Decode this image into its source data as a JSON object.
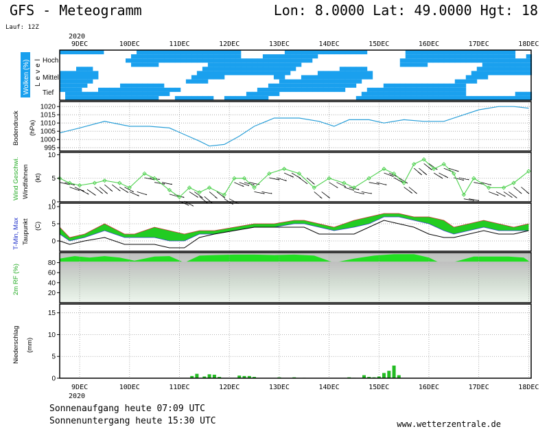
{
  "header": {
    "title": "GFS - Meteogramm",
    "location": "Lon: 8.0000  Lat: 49.0000  Hgt: 18",
    "run": "Lauf: 12Z"
  },
  "footer": {
    "sunrise": "Sonnenaufgang heute 07:09 UTC",
    "sunset": "Sonnenuntergang heute 15:30 UTC",
    "source": "www.wetterzentrale.de"
  },
  "chart_data": {
    "type": "line",
    "year_label": "2020",
    "day_labels": [
      "9DEC",
      "10DEC",
      "11DEC",
      "12DEC",
      "13DEC",
      "14DEC",
      "15DEC",
      "16DEC",
      "17DEC",
      "18DEC"
    ],
    "x_start_day": 9.1,
    "x_end_day": 18.55,
    "colors": {
      "cloud": "#1aa0ee",
      "pressure": "#2a9fd8",
      "wind": "#4bd04b",
      "tmax": "#22cc22",
      "tmin_fill": "#99dd33",
      "dewpoint": "#000000",
      "humidity": "#22dd22",
      "precip": "#22bb22"
    },
    "panels": {
      "clouds": {
        "ylabel": "Wolken (%)",
        "level_label": "Level",
        "levels": [
          "Hoch",
          "Mittel",
          "Tief"
        ]
      },
      "pressure": {
        "ylabel": "Bodendruck",
        "unit": "(hPa)",
        "ticks": [
          995,
          1000,
          1005,
          1010,
          1015,
          1020
        ],
        "ylim": [
          993,
          1023
        ],
        "x": [
          9.1,
          9.5,
          10.0,
          10.5,
          10.9,
          11.3,
          11.6,
          11.9,
          12.1,
          12.4,
          12.7,
          13.0,
          13.4,
          13.9,
          14.3,
          14.6,
          14.9,
          15.3,
          15.6,
          16.0,
          16.4,
          16.8,
          17.1,
          17.5,
          17.9,
          18.2,
          18.5
        ],
        "values": [
          1004,
          1007,
          1011,
          1008,
          1008,
          1007,
          1003,
          999,
          996,
          997,
          1002,
          1008,
          1013,
          1013,
          1011,
          1008,
          1012,
          1012,
          1010,
          1012,
          1011,
          1011,
          1014,
          1018,
          1020,
          1020,
          1019
        ]
      },
      "wind": {
        "ylabel": "Wind Geschwi.",
        "ylabel2": "Windfahnen",
        "unit": "(kt)",
        "ticks": [
          0,
          5,
          10
        ],
        "ylim": [
          0,
          10.5
        ],
        "x": [
          9.1,
          9.3,
          9.5,
          9.8,
          10.0,
          10.3,
          10.5,
          10.8,
          11.0,
          11.3,
          11.5,
          11.7,
          11.9,
          12.1,
          12.4,
          12.6,
          12.8,
          13.0,
          13.3,
          13.6,
          13.9,
          14.2,
          14.5,
          14.8,
          15.0,
          15.3,
          15.6,
          15.8,
          16.0,
          16.2,
          16.4,
          16.6,
          16.8,
          17.0,
          17.2,
          17.4,
          17.7,
          18.0,
          18.2,
          18.5
        ],
        "values": [
          5,
          4,
          3.5,
          4,
          4.5,
          4,
          3,
          6,
          5,
          2.5,
          1,
          3,
          2,
          3,
          1.5,
          5,
          5,
          3,
          6,
          7,
          6,
          3,
          5,
          4,
          3,
          5,
          7,
          6,
          4,
          8,
          9,
          7,
          8,
          6,
          1.5,
          5,
          3,
          3,
          4,
          6.5
        ]
      },
      "temperature": {
        "ylabel": "T-Min, Max",
        "ylabel2": "Taupunkt",
        "unit": "(C)",
        "ticks": [
          0,
          5,
          10
        ],
        "ylim": [
          -3,
          11
        ],
        "x": [
          9.1,
          9.3,
          9.6,
          10.0,
          10.4,
          10.6,
          11.0,
          11.3,
          11.6,
          11.9,
          12.2,
          12.6,
          13.0,
          13.4,
          13.8,
          14.0,
          14.3,
          14.6,
          15.0,
          15.3,
          15.6,
          15.9,
          16.2,
          16.5,
          16.8,
          17.0,
          17.3,
          17.6,
          17.9,
          18.2,
          18.5
        ],
        "tmax": [
          4,
          1,
          2,
          5,
          2,
          2,
          4,
          3,
          2,
          3,
          3,
          4,
          5,
          5,
          6,
          6,
          5,
          4,
          6,
          7,
          8,
          8,
          7,
          7,
          6,
          4,
          5,
          6,
          5,
          4,
          5
        ],
        "tmin": [
          2,
          0,
          1,
          3,
          1,
          1,
          1,
          0,
          0,
          2,
          2,
          3,
          4,
          4,
          5,
          5,
          4,
          3,
          4,
          5,
          7,
          7,
          6,
          5,
          3,
          2,
          3,
          4,
          3,
          3,
          3
        ],
        "dewpoint": [
          0,
          -1,
          0,
          1,
          -1,
          -1,
          -1,
          -2,
          -2,
          1,
          2,
          3,
          4,
          4,
          4,
          4,
          2,
          2,
          2,
          4,
          6,
          5,
          4,
          2,
          1,
          1,
          2,
          3,
          2,
          2,
          3
        ]
      },
      "humidity": {
        "ylabel": "2m RF (%)",
        "ticks": [
          20,
          40,
          60,
          80
        ],
        "ylim": [
          0,
          100
        ],
        "x": [
          9.1,
          9.4,
          9.7,
          10.0,
          10.3,
          10.6,
          11.0,
          11.3,
          11.6,
          11.9,
          12.2,
          12.6,
          13.0,
          13.4,
          13.8,
          14.2,
          14.6,
          15.0,
          15.4,
          15.8,
          16.2,
          16.5,
          16.8,
          17.1,
          17.4,
          17.8,
          18.1,
          18.4,
          18.55
        ],
        "values": [
          88,
          93,
          90,
          93,
          90,
          84,
          92,
          93,
          80,
          94,
          95,
          96,
          96,
          95,
          96,
          94,
          80,
          88,
          94,
          97,
          97,
          90,
          76,
          84,
          92,
          92,
          92,
          90,
          80
        ]
      },
      "precip": {
        "ylabel": "Niederschlag",
        "unit": "(mm)",
        "ticks": [
          0,
          5,
          10,
          15
        ],
        "ylim": [
          0,
          17
        ],
        "x": [
          11.75,
          11.85,
          12.0,
          12.1,
          12.2,
          12.3,
          12.7,
          12.8,
          12.9,
          13.0,
          13.5,
          13.8,
          14.0,
          14.9,
          15.0,
          15.2,
          15.3,
          15.4,
          15.5,
          15.6,
          15.7,
          15.8,
          15.9
        ],
        "values": [
          0.5,
          1.0,
          0.4,
          0.9,
          0.8,
          0.3,
          0.6,
          0.5,
          0.5,
          0.3,
          0.2,
          0.2,
          0.1,
          0.2,
          0.1,
          0.7,
          0.3,
          0.2,
          0.4,
          1.2,
          1.7,
          2.9,
          0.7
        ]
      }
    }
  }
}
